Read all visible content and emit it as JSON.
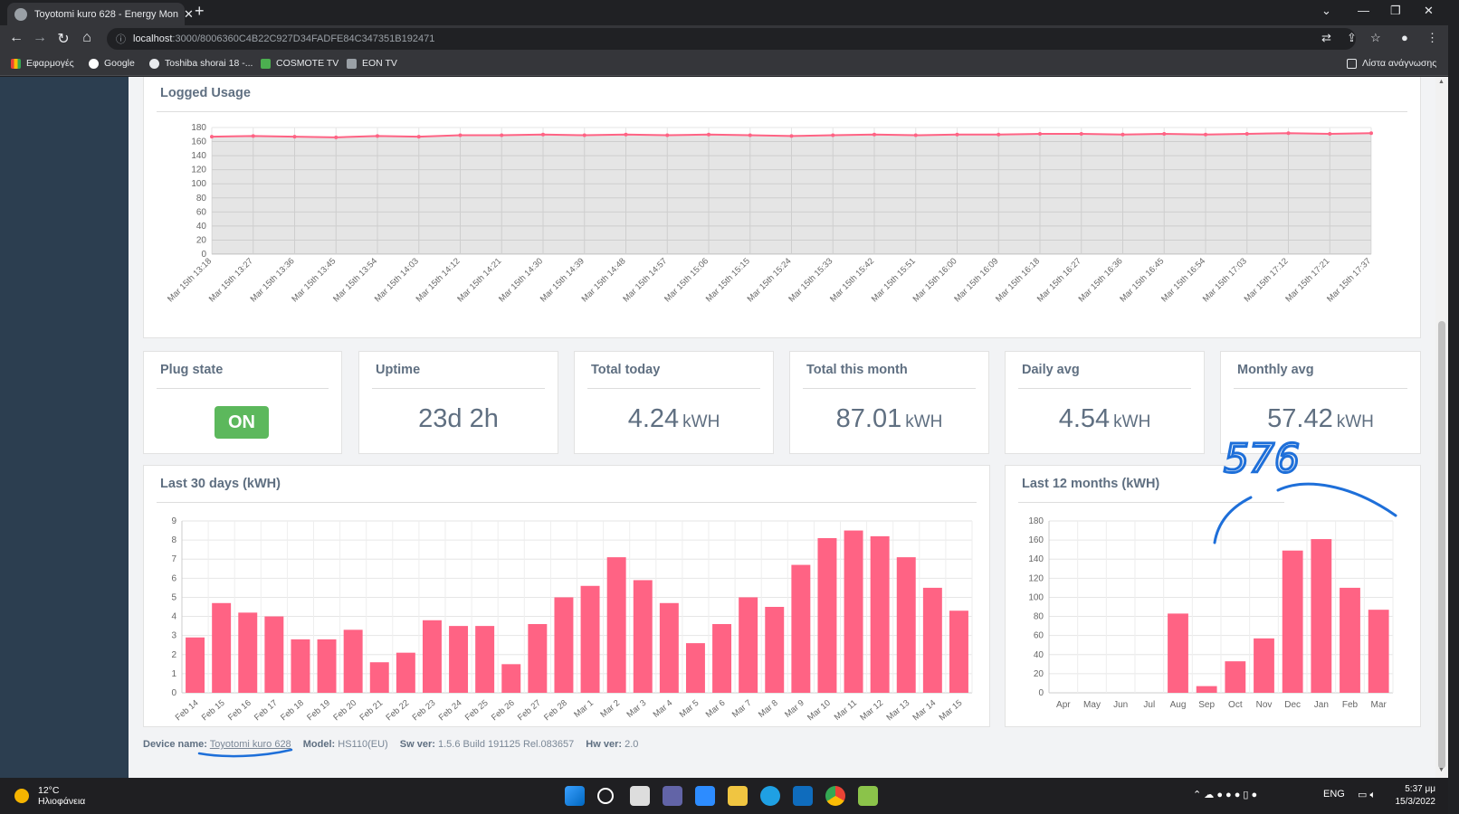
{
  "browser": {
    "tab_title": "Toyotomi kuro 628 - Energy Mon",
    "url_host": "localhost",
    "url_rest": ":3000/8006360C4B22C927D34FADFE84C347351B192471",
    "bookmarks": [
      "Εφαρμογές",
      "Google",
      "Toshiba shorai 18 -...",
      "COSMOTE TV",
      "EON TV"
    ],
    "reading_list": "Λίστα ανάγνωσης"
  },
  "logged_usage": {
    "title": "Logged Usage",
    "chart_data": {
      "type": "area",
      "title": "Logged Usage",
      "ylim": [
        0,
        180
      ],
      "yticks": [
        0,
        20,
        40,
        60,
        80,
        100,
        120,
        140,
        160,
        180
      ],
      "x": [
        "Mar 15th 13:18",
        "Mar 15th 13:27",
        "Mar 15th 13:36",
        "Mar 15th 13:45",
        "Mar 15th 13:54",
        "Mar 15th 14:03",
        "Mar 15th 14:12",
        "Mar 15th 14:21",
        "Mar 15th 14:30",
        "Mar 15th 14:39",
        "Mar 15th 14:48",
        "Mar 15th 14:57",
        "Mar 15th 15:06",
        "Mar 15th 15:15",
        "Mar 15th 15:24",
        "Mar 15th 15:33",
        "Mar 15th 15:42",
        "Mar 15th 15:51",
        "Mar 15th 16:00",
        "Mar 15th 16:09",
        "Mar 15th 16:18",
        "Mar 15th 16:27",
        "Mar 15th 16:36",
        "Mar 15th 16:45",
        "Mar 15th 16:54",
        "Mar 15th 17:03",
        "Mar 15th 17:12",
        "Mar 15th 17:21",
        "Mar 15th 17:37"
      ],
      "values": [
        167,
        168,
        167,
        166,
        168,
        167,
        169,
        169,
        170,
        169,
        170,
        169,
        170,
        169,
        168,
        169,
        170,
        169,
        170,
        170,
        171,
        171,
        170,
        171,
        170,
        171,
        172,
        171,
        172
      ]
    }
  },
  "stats": [
    {
      "title": "Plug state",
      "badge": "ON"
    },
    {
      "title": "Uptime",
      "value": "23d 2h"
    },
    {
      "title": "Total today",
      "value": "4.24",
      "unit": "kWH"
    },
    {
      "title": "Total this month",
      "value": "87.01",
      "unit": "kWH"
    },
    {
      "title": "Daily avg",
      "value": "4.54",
      "unit": "kWH"
    },
    {
      "title": "Monthly avg",
      "value": "57.42",
      "unit": "kWH"
    }
  ],
  "last30": {
    "title": "Last 30 days (kWH)",
    "chart_data": {
      "type": "bar",
      "title": "Last 30 days (kWH)",
      "ylim": [
        0,
        9
      ],
      "yticks": [
        0,
        1,
        2,
        3,
        4,
        5,
        6,
        7,
        8,
        9
      ],
      "categories": [
        "Feb 14",
        "Feb 15",
        "Feb 16",
        "Feb 17",
        "Feb 18",
        "Feb 19",
        "Feb 20",
        "Feb 21",
        "Feb 22",
        "Feb 23",
        "Feb 24",
        "Feb 25",
        "Feb 26",
        "Feb 27",
        "Feb 28",
        "Mar 1",
        "Mar 2",
        "Mar 3",
        "Mar 4",
        "Mar 5",
        "Mar 6",
        "Mar 7",
        "Mar 8",
        "Mar 9",
        "Mar 10",
        "Mar 11",
        "Mar 12",
        "Mar 13",
        "Mar 14",
        "Mar 15"
      ],
      "values": [
        2.9,
        4.7,
        4.2,
        4.0,
        2.8,
        2.8,
        3.3,
        1.6,
        2.1,
        3.8,
        3.5,
        3.5,
        1.5,
        3.6,
        5.0,
        5.6,
        7.1,
        5.9,
        4.7,
        2.6,
        3.6,
        5.0,
        4.5,
        6.7,
        8.1,
        8.5,
        8.2,
        7.1,
        5.5,
        4.3
      ]
    }
  },
  "last12": {
    "title": "Last 12 months (kWH)",
    "chart_data": {
      "type": "bar",
      "title": "Last 12 months (kWH)",
      "ylim": [
        0,
        180
      ],
      "yticks": [
        0,
        20,
        40,
        60,
        80,
        100,
        120,
        140,
        160,
        180
      ],
      "categories": [
        "Apr",
        "May",
        "Jun",
        "Jul",
        "Aug",
        "Sep",
        "Oct",
        "Nov",
        "Dec",
        "Jan",
        "Feb",
        "Mar"
      ],
      "values": [
        0,
        0,
        0,
        0,
        83,
        7,
        33,
        57,
        149,
        161,
        110,
        87
      ]
    },
    "annotation": "576"
  },
  "footer": {
    "device_label": "Device name:",
    "device_value": "Toyotomi kuro 628",
    "model_label": "Model:",
    "model_value": "HS110(EU)",
    "sw_label": "Sw ver:",
    "sw_value": "1.5.6 Build 191125 Rel.083657",
    "hw_label": "Hw ver:",
    "hw_value": "2.0"
  },
  "taskbar": {
    "temp": "12°C",
    "weather": "Ηλιοφάνεια",
    "lang": "ENG",
    "time": "5:37 μμ",
    "date": "15/3/2022"
  },
  "colors": {
    "bar": "#ff6384",
    "line": "#ff6384",
    "sidebar": "#2c3e50",
    "on": "#5cb85c"
  }
}
